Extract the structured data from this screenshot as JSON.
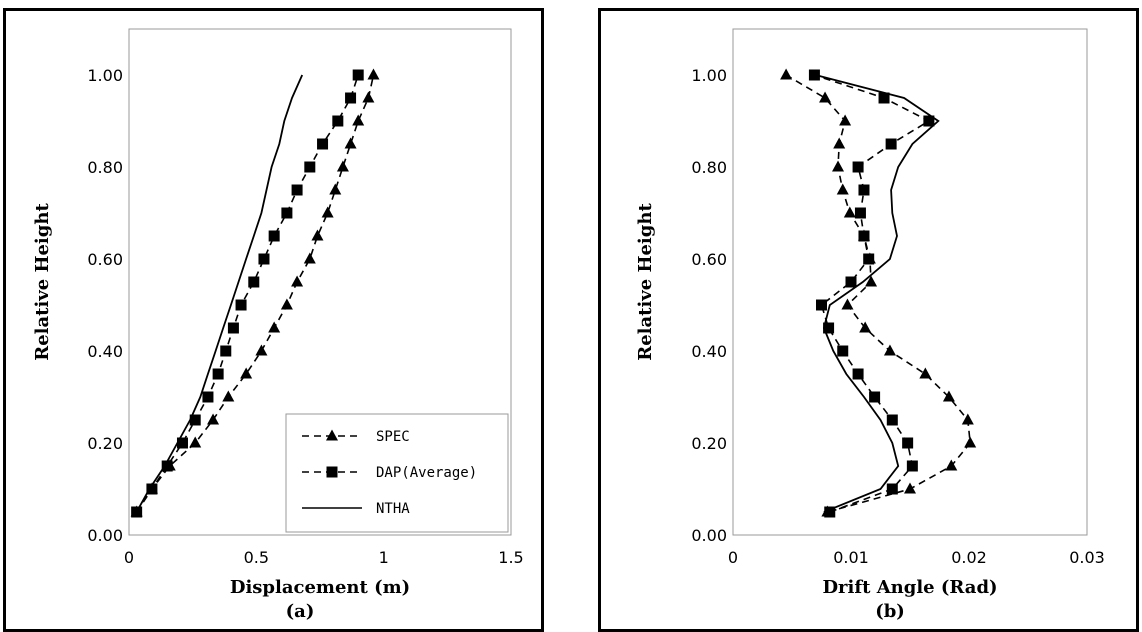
{
  "chart_data": [
    {
      "id": "a",
      "type": "line",
      "xlabel": "Displacement (m)",
      "ylabel": "Relative Height",
      "caption": "(a)",
      "xlim": [
        0,
        1.5
      ],
      "ylim": [
        0,
        1.1
      ],
      "xticks": [
        "0",
        "0.5",
        "1",
        "1.5"
      ],
      "yticks": [
        "0.00",
        "0.20",
        "0.40",
        "0.60",
        "0.80",
        "1.00"
      ],
      "xtick_values": [
        0,
        0.5,
        1,
        1.5
      ],
      "ytick_values": [
        0,
        0.2,
        0.4,
        0.6,
        0.8,
        1.0
      ],
      "grid": false,
      "legend": {
        "placement": "bottom-right",
        "entries": [
          "SPEC",
          "DAP(Average)",
          "NTHA"
        ]
      },
      "series": [
        {
          "name": "SPEC",
          "style": "dashed",
          "marker": "triangle",
          "points": [
            [
              0.03,
              0.05
            ],
            [
              0.09,
              0.1
            ],
            [
              0.16,
              0.15
            ],
            [
              0.26,
              0.2
            ],
            [
              0.33,
              0.25
            ],
            [
              0.39,
              0.3
            ],
            [
              0.46,
              0.35
            ],
            [
              0.52,
              0.4
            ],
            [
              0.57,
              0.45
            ],
            [
              0.62,
              0.5
            ],
            [
              0.66,
              0.55
            ],
            [
              0.71,
              0.6
            ],
            [
              0.74,
              0.65
            ],
            [
              0.78,
              0.7
            ],
            [
              0.81,
              0.75
            ],
            [
              0.84,
              0.8
            ],
            [
              0.87,
              0.85
            ],
            [
              0.9,
              0.9
            ],
            [
              0.94,
              0.95
            ],
            [
              0.96,
              1.0
            ]
          ]
        },
        {
          "name": "DAP(Average)",
          "style": "dashed",
          "marker": "square",
          "points": [
            [
              0.03,
              0.05
            ],
            [
              0.09,
              0.1
            ],
            [
              0.15,
              0.15
            ],
            [
              0.21,
              0.2
            ],
            [
              0.26,
              0.25
            ],
            [
              0.31,
              0.3
            ],
            [
              0.35,
              0.35
            ],
            [
              0.38,
              0.4
            ],
            [
              0.41,
              0.45
            ],
            [
              0.44,
              0.5
            ],
            [
              0.49,
              0.55
            ],
            [
              0.53,
              0.6
            ],
            [
              0.57,
              0.65
            ],
            [
              0.62,
              0.7
            ],
            [
              0.66,
              0.75
            ],
            [
              0.71,
              0.8
            ],
            [
              0.76,
              0.85
            ],
            [
              0.82,
              0.9
            ],
            [
              0.87,
              0.95
            ],
            [
              0.9,
              1.0
            ]
          ]
        },
        {
          "name": "NTHA",
          "style": "solid",
          "marker": "none",
          "points": [
            [
              0.03,
              0.05
            ],
            [
              0.08,
              0.1
            ],
            [
              0.14,
              0.15
            ],
            [
              0.19,
              0.2
            ],
            [
              0.24,
              0.25
            ],
            [
              0.28,
              0.3
            ],
            [
              0.31,
              0.35
            ],
            [
              0.34,
              0.4
            ],
            [
              0.37,
              0.45
            ],
            [
              0.4,
              0.5
            ],
            [
              0.43,
              0.55
            ],
            [
              0.46,
              0.6
            ],
            [
              0.49,
              0.65
            ],
            [
              0.52,
              0.7
            ],
            [
              0.54,
              0.75
            ],
            [
              0.56,
              0.8
            ],
            [
              0.59,
              0.85
            ],
            [
              0.61,
              0.9
            ],
            [
              0.64,
              0.95
            ],
            [
              0.68,
              1.0
            ]
          ]
        }
      ]
    },
    {
      "id": "b",
      "type": "line",
      "xlabel": "Drift Angle (Rad)",
      "ylabel": "Relative Height",
      "caption": "(b)",
      "xlim": [
        0,
        0.03
      ],
      "ylim": [
        0,
        1.1
      ],
      "xticks": [
        "0",
        "0.01",
        "0.02",
        "0.03"
      ],
      "yticks": [
        "0.00",
        "0.20",
        "0.40",
        "0.60",
        "0.80",
        "1.00"
      ],
      "xtick_values": [
        0,
        0.01,
        0.02,
        0.03
      ],
      "ytick_values": [
        0,
        0.2,
        0.4,
        0.6,
        0.8,
        1.0
      ],
      "grid": false,
      "series": [
        {
          "name": "SPEC",
          "style": "dashed",
          "marker": "triangle",
          "points": [
            [
              0.008,
              0.05
            ],
            [
              0.015,
              0.1
            ],
            [
              0.0185,
              0.15
            ],
            [
              0.0201,
              0.2
            ],
            [
              0.0199,
              0.25
            ],
            [
              0.0183,
              0.3
            ],
            [
              0.0163,
              0.35
            ],
            [
              0.0133,
              0.4
            ],
            [
              0.0112,
              0.45
            ],
            [
              0.0097,
              0.5
            ],
            [
              0.0117,
              0.55
            ],
            [
              0.0116,
              0.6
            ],
            [
              0.0111,
              0.65
            ],
            [
              0.0099,
              0.7
            ],
            [
              0.0093,
              0.75
            ],
            [
              0.0089,
              0.8
            ],
            [
              0.009,
              0.85
            ],
            [
              0.0095,
              0.9
            ],
            [
              0.0078,
              0.95
            ],
            [
              0.0045,
              1.0
            ]
          ]
        },
        {
          "name": "DAP(Average)",
          "style": "dashed",
          "marker": "square",
          "points": [
            [
              0.0082,
              0.05
            ],
            [
              0.0135,
              0.1
            ],
            [
              0.0152,
              0.15
            ],
            [
              0.0148,
              0.2
            ],
            [
              0.0135,
              0.25
            ],
            [
              0.012,
              0.3
            ],
            [
              0.0106,
              0.35
            ],
            [
              0.0093,
              0.4
            ],
            [
              0.0081,
              0.45
            ],
            [
              0.0075,
              0.5
            ],
            [
              0.01,
              0.55
            ],
            [
              0.0115,
              0.6
            ],
            [
              0.0111,
              0.65
            ],
            [
              0.0108,
              0.7
            ],
            [
              0.0111,
              0.75
            ],
            [
              0.0106,
              0.8
            ],
            [
              0.0134,
              0.85
            ],
            [
              0.0166,
              0.9
            ],
            [
              0.0128,
              0.95
            ],
            [
              0.0069,
              1.0
            ]
          ]
        },
        {
          "name": "NTHA",
          "style": "solid",
          "marker": "none",
          "points": [
            [
              0.0077,
              0.05
            ],
            [
              0.0125,
              0.1
            ],
            [
              0.014,
              0.15
            ],
            [
              0.0135,
              0.2
            ],
            [
              0.0125,
              0.25
            ],
            [
              0.0111,
              0.3
            ],
            [
              0.0096,
              0.35
            ],
            [
              0.0085,
              0.4
            ],
            [
              0.0077,
              0.45
            ],
            [
              0.0082,
              0.5
            ],
            [
              0.011,
              0.55
            ],
            [
              0.0133,
              0.6
            ],
            [
              0.0139,
              0.65
            ],
            [
              0.0135,
              0.7
            ],
            [
              0.0134,
              0.75
            ],
            [
              0.014,
              0.8
            ],
            [
              0.0152,
              0.85
            ],
            [
              0.0174,
              0.9
            ],
            [
              0.0145,
              0.95
            ],
            [
              0.007,
              1.0
            ]
          ]
        }
      ]
    }
  ]
}
